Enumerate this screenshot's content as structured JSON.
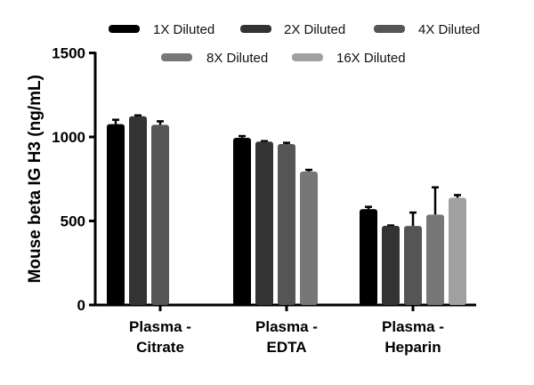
{
  "chart_data": {
    "type": "bar",
    "title": "",
    "xlabel": "",
    "ylabel": "Mouse beta IG H3 (ng/mL)",
    "ylim": [
      0,
      1500
    ],
    "yticks": [
      0,
      500,
      1000,
      1500
    ],
    "grid": false,
    "legend_placement": "top",
    "categories": [
      [
        "Plasma -",
        "Citrate"
      ],
      [
        "Plasma -",
        "EDTA"
      ],
      [
        "Plasma -",
        "Heparin"
      ]
    ],
    "series": [
      {
        "name": "1X Diluted",
        "color": "#000000",
        "values": [
          1076,
          995,
          570
        ],
        "error": [
          26,
          10,
          14
        ]
      },
      {
        "name": "2X Diluted",
        "color": "#333333",
        "values": [
          1123,
          972,
          471
        ],
        "error": [
          5,
          3,
          2
        ]
      },
      {
        "name": "4X Diluted",
        "color": "#555555",
        "values": [
          1072,
          958,
          470
        ],
        "error": [
          21,
          7,
          80
        ]
      },
      {
        "name": "8X Diluted",
        "color": "#777777",
        "values": [
          null,
          794,
          538
        ],
        "error": [
          null,
          10,
          162
        ]
      },
      {
        "name": "16X Diluted",
        "color": "#a0a0a0",
        "values": [
          null,
          null,
          638
        ],
        "error": [
          null,
          null,
          16
        ]
      }
    ]
  }
}
